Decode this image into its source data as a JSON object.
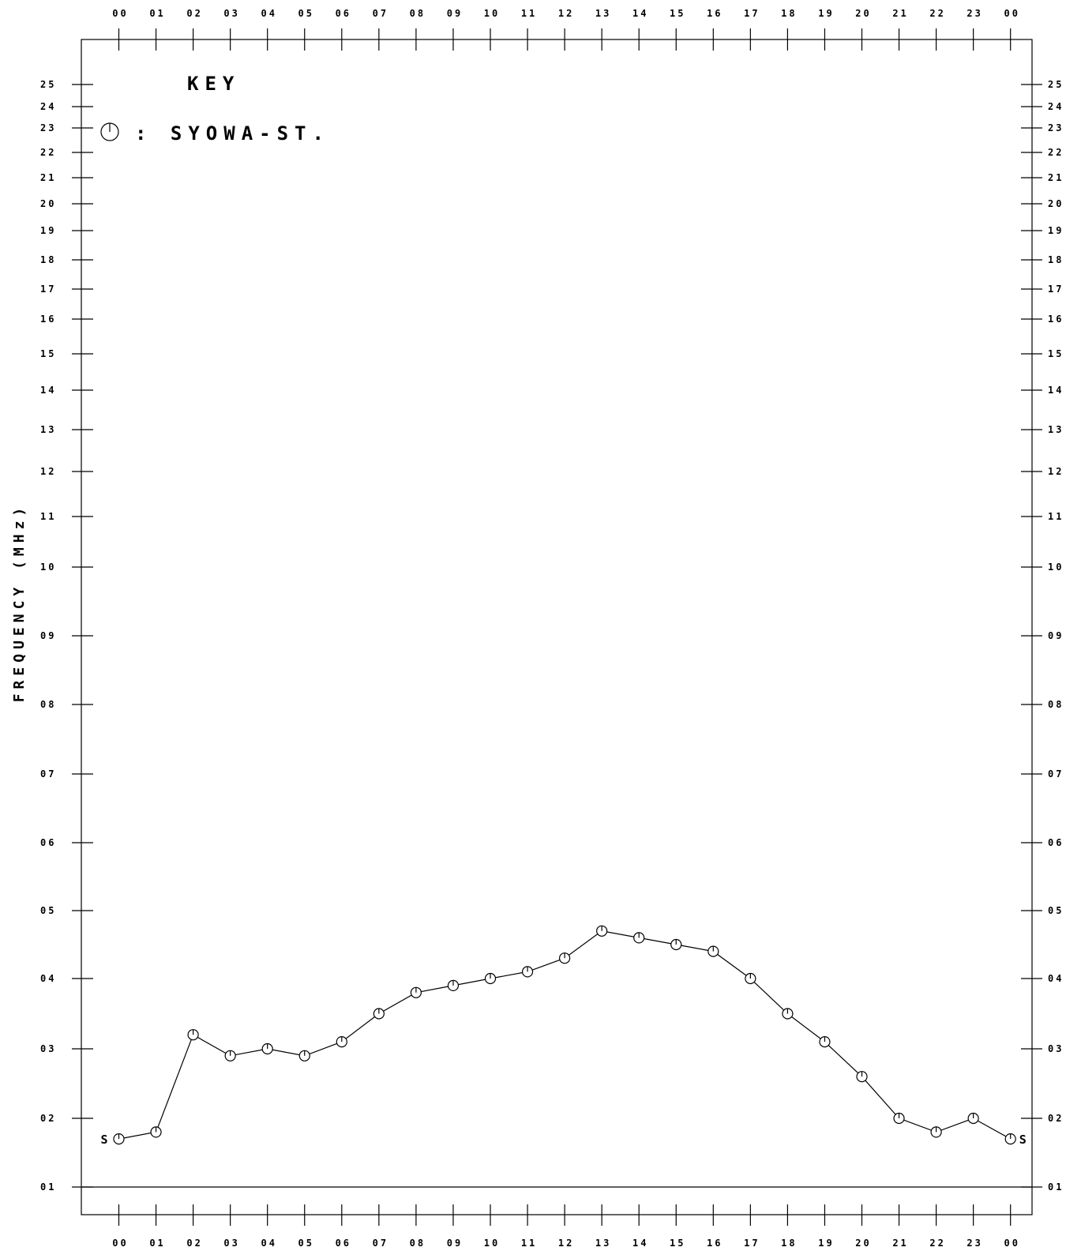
{
  "chart_data": {
    "type": "line",
    "ylabel": "FREQUENCY (MHz)",
    "xlabel": "",
    "x_tick_labels": [
      "00",
      "01",
      "02",
      "03",
      "04",
      "05",
      "06",
      "07",
      "08",
      "09",
      "10",
      "11",
      "12",
      "13",
      "14",
      "15",
      "16",
      "17",
      "18",
      "19",
      "20",
      "21",
      "22",
      "23",
      "00"
    ],
    "y_ticks": [
      1,
      2,
      3,
      4,
      5,
      6,
      7,
      8,
      9,
      10,
      11,
      12,
      13,
      14,
      15,
      16,
      17,
      18,
      19,
      20,
      21,
      22,
      23,
      24,
      25
    ],
    "y_tick_labels": [
      "01",
      "02",
      "03",
      "04",
      "05",
      "06",
      "07",
      "08",
      "09",
      "10",
      "11",
      "12",
      "13",
      "14",
      "15",
      "16",
      "17",
      "18",
      "19",
      "20",
      "21",
      "22",
      "23",
      "24",
      "25"
    ],
    "ylim": [
      0.6,
      25.5
    ],
    "y_scale": "reciprocal-like (stretched at low frequencies)",
    "key": {
      "title": "KEY",
      "entries": [
        {
          "symbol": "circle-with-hand",
          "label": ": SYOWA-ST."
        }
      ]
    },
    "series": [
      {
        "name": "SYOWA-ST.",
        "x": [
          0,
          1,
          2,
          3,
          4,
          5,
          6,
          7,
          8,
          9,
          10,
          11,
          12,
          13,
          14,
          15,
          16,
          17,
          18,
          19,
          20,
          21,
          22,
          23,
          24
        ],
        "values": [
          1.7,
          1.8,
          3.2,
          2.9,
          3.0,
          2.9,
          3.1,
          3.5,
          3.8,
          3.9,
          4.0,
          4.1,
          4.3,
          4.7,
          4.6,
          4.5,
          4.4,
          4.0,
          3.5,
          3.1,
          2.6,
          2.0,
          1.8,
          2.0,
          1.7
        ]
      }
    ],
    "annotations": [
      {
        "text": "S",
        "at_hour": 0,
        "side": "left"
      },
      {
        "text": "S",
        "at_hour": 24,
        "side": "right"
      }
    ],
    "grid": false,
    "legend_position": "top-left"
  }
}
